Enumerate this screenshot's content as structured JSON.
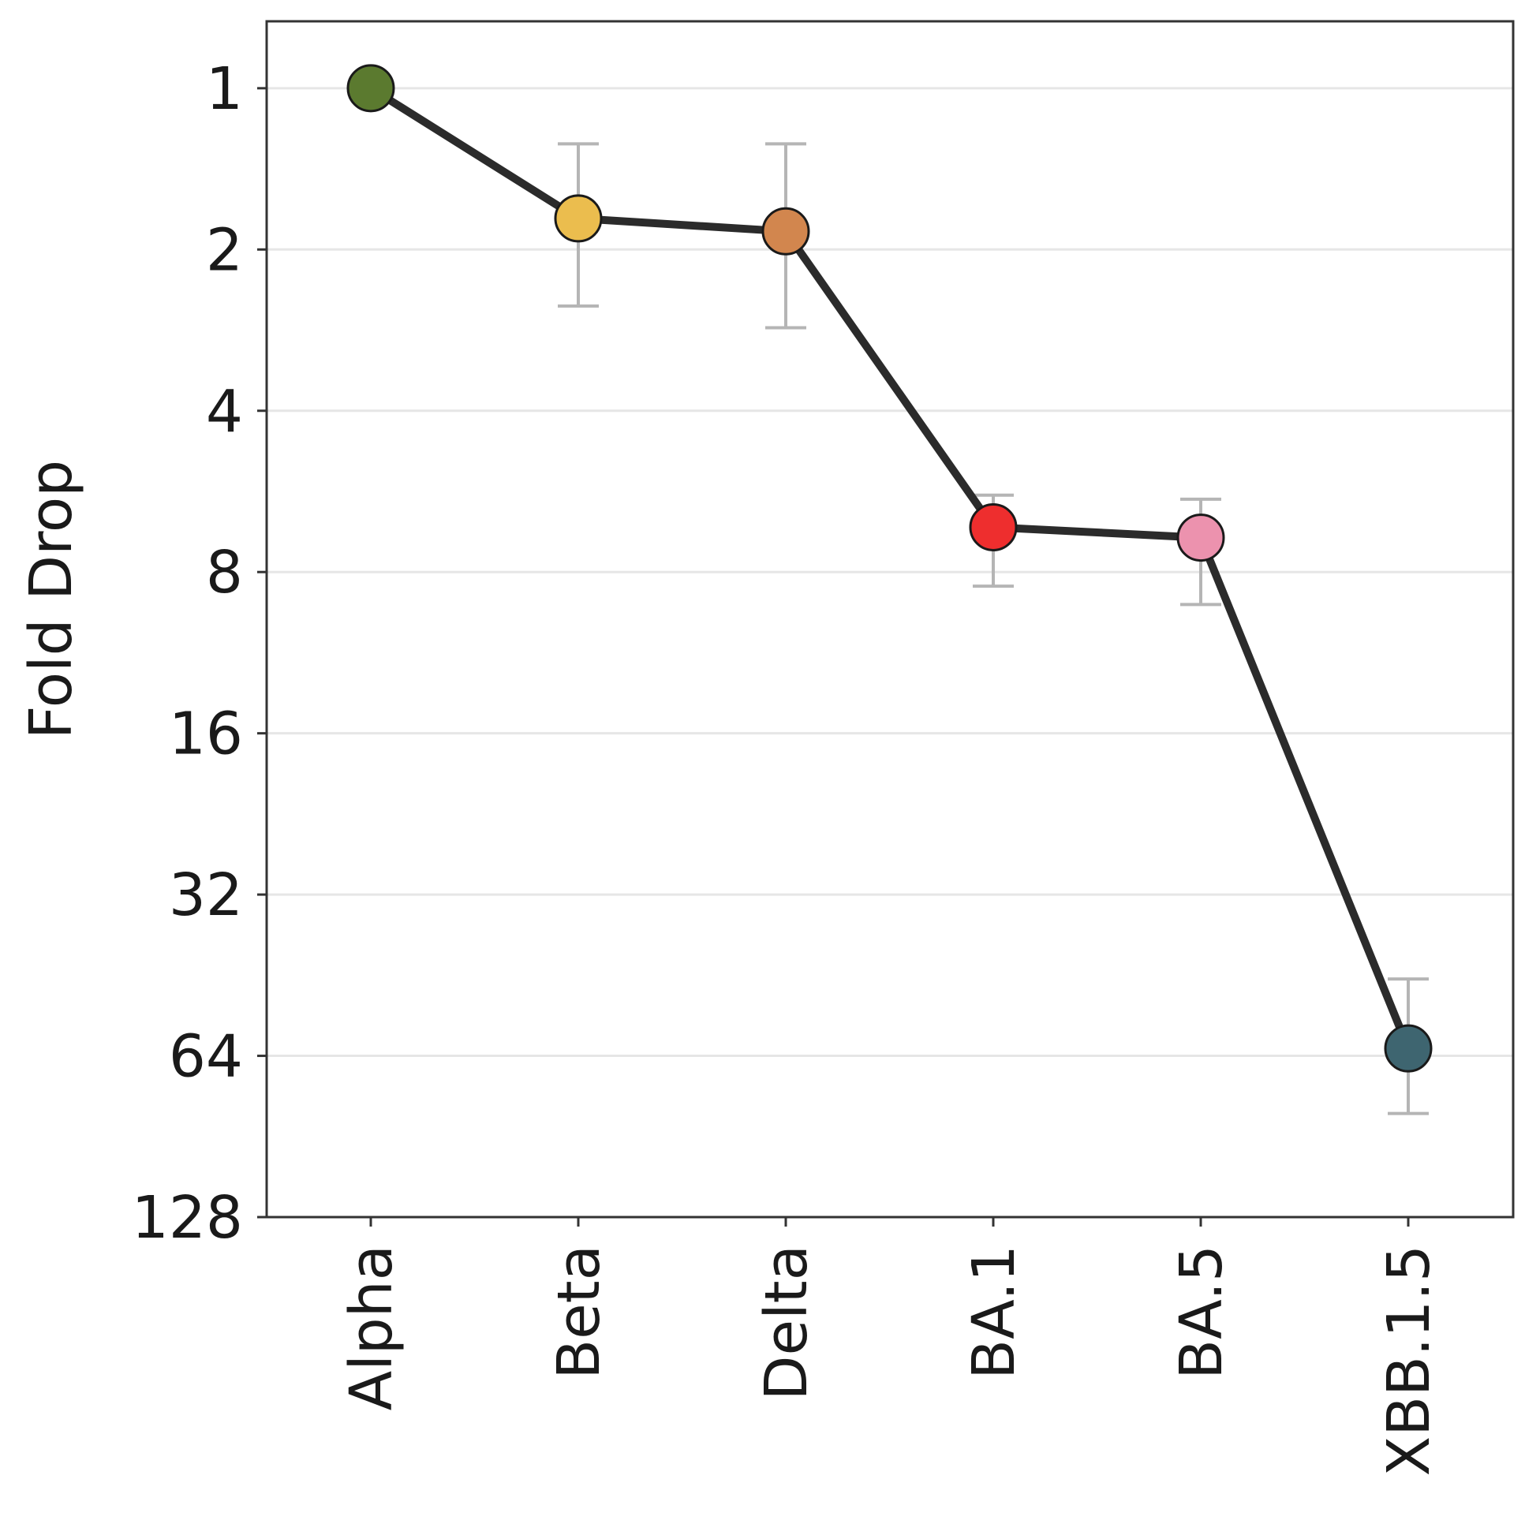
{
  "chart_data": {
    "type": "line",
    "title": "",
    "xlabel": "",
    "ylabel": "Fold Drop",
    "y_scale": "log2",
    "y_inverted": true,
    "ylim": [
      128,
      0.75
    ],
    "y_ticks": [
      1,
      2,
      4,
      8,
      16,
      32,
      64,
      128
    ],
    "y_tick_labels": [
      "1",
      "2",
      "4",
      "8",
      "16",
      "32",
      "64",
      "128"
    ],
    "grid": "horizontal",
    "legend": "none",
    "categories": [
      "Alpha",
      "Beta",
      "Delta",
      "BA.1",
      "BA.5",
      "XBB.1.5"
    ],
    "series": [
      {
        "values": [
          1.0,
          1.75,
          1.85,
          6.6,
          6.9,
          62
        ],
        "error_low": [
          1.0,
          1.27,
          1.27,
          5.75,
          5.85,
          46
        ],
        "error_high": [
          1.0,
          2.55,
          2.8,
          8.5,
          9.2,
          82
        ],
        "line_color": "#2b2b2b",
        "marker_colors": [
          "#5b7a2f",
          "#ebbd4e",
          "#d2864e",
          "#ee2e2e",
          "#ec92ae",
          "#3e6570"
        ]
      }
    ],
    "colors": {
      "errorbar": "#b5b5b5",
      "grid": "#e6e6e6",
      "axis": "#333333",
      "marker_edge": "#1a1a1a"
    }
  }
}
